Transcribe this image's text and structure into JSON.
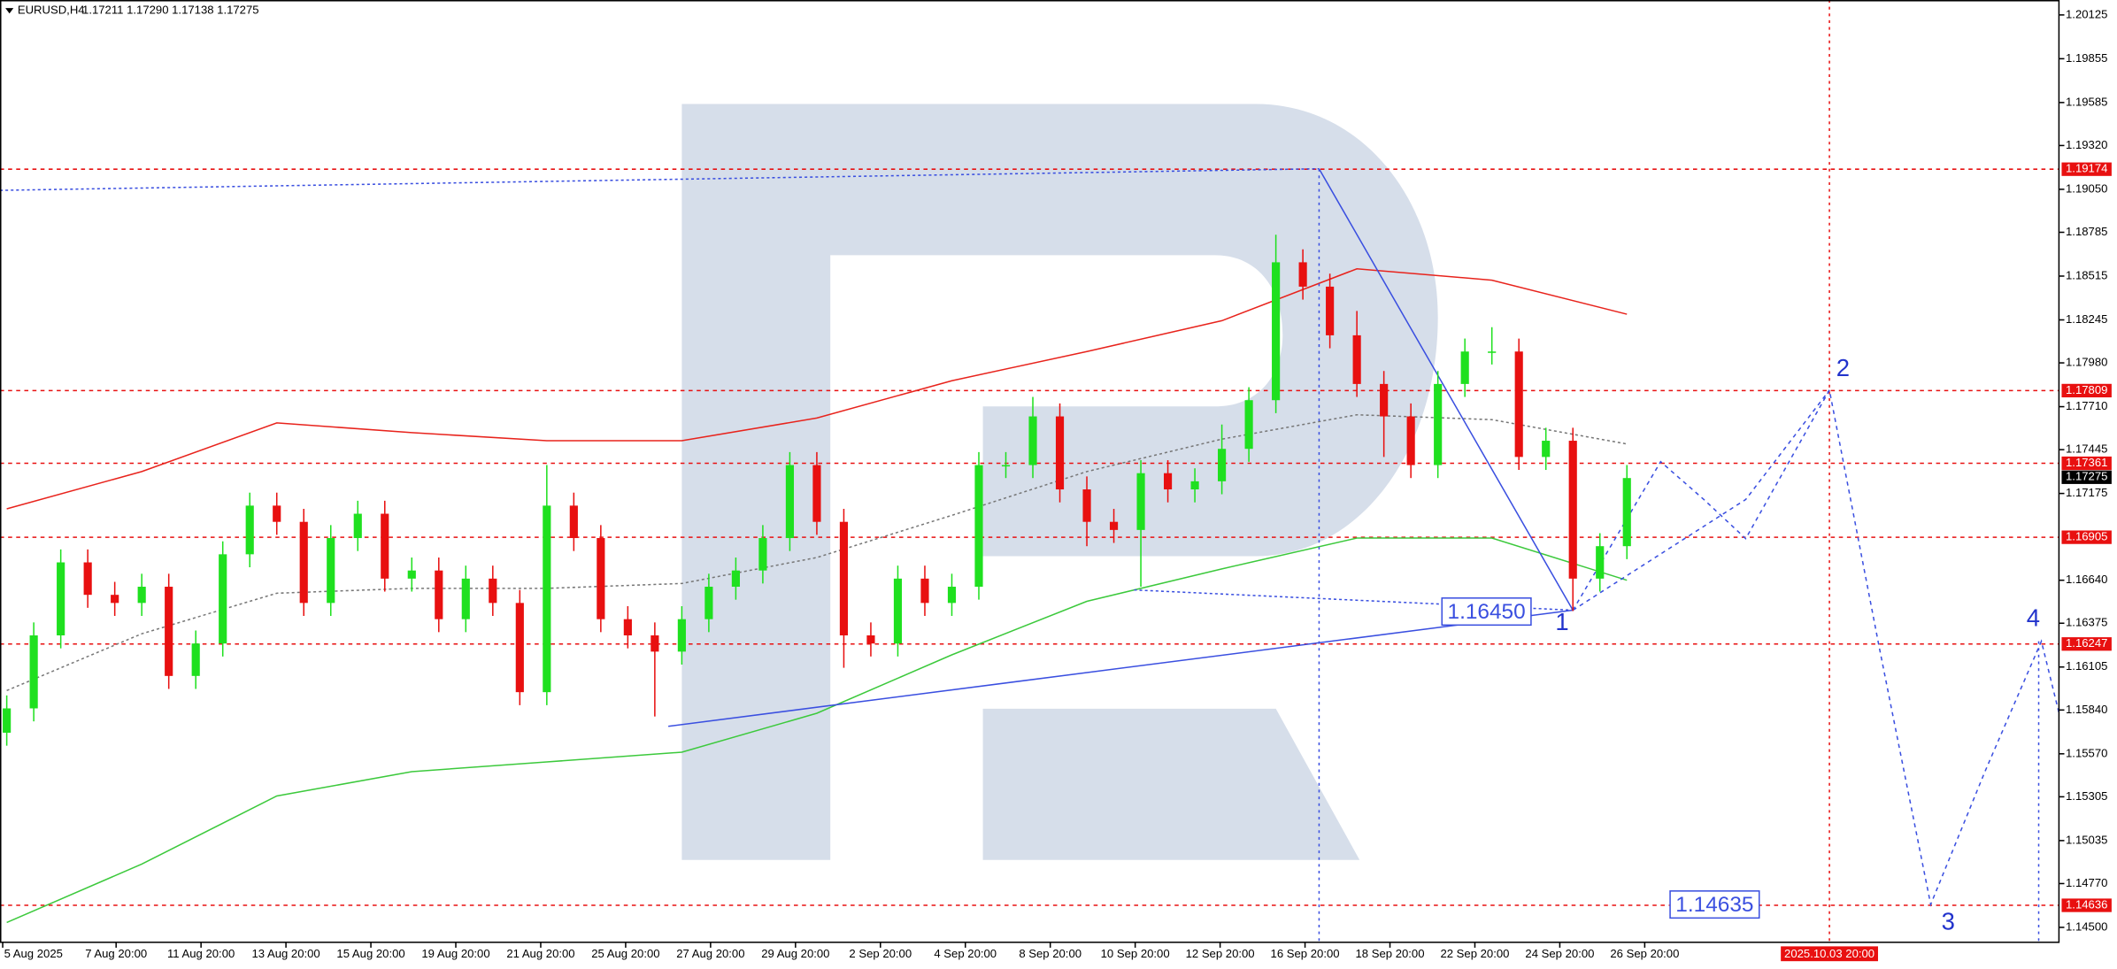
{
  "chart_data": {
    "type": "candlestick",
    "title": "EURUSD,H4",
    "header_values": "1.17211 1.17290 1.17138 1.17275",
    "ylim": [
      1.14408,
      1.20217
    ],
    "yticks": [
      {
        "value": 1.20125,
        "label": "1.20125"
      },
      {
        "value": 1.19855,
        "label": "1.19855"
      },
      {
        "value": 1.19585,
        "label": "1.19585"
      },
      {
        "value": 1.1932,
        "label": "1.19320"
      },
      {
        "value": 1.1905,
        "label": "1.19050"
      },
      {
        "value": 1.18785,
        "label": "1.18785"
      },
      {
        "value": 1.18515,
        "label": "1.18515"
      },
      {
        "value": 1.18245,
        "label": "1.18245"
      },
      {
        "value": 1.1798,
        "label": "1.17980"
      },
      {
        "value": 1.1771,
        "label": "1.17710"
      },
      {
        "value": 1.17445,
        "label": "1.17445"
      },
      {
        "value": 1.17175,
        "label": "1.17175"
      },
      {
        "value": 1.1664,
        "label": "1.16640"
      },
      {
        "value": 1.16375,
        "label": "1.16375"
      },
      {
        "value": 1.16105,
        "label": "1.16105"
      },
      {
        "value": 1.1584,
        "label": "1.15840"
      },
      {
        "value": 1.1557,
        "label": "1.15570"
      },
      {
        "value": 1.15305,
        "label": "1.15305"
      },
      {
        "value": 1.15035,
        "label": "1.15035"
      },
      {
        "value": 1.1477,
        "label": "1.14770"
      },
      {
        "value": 1.145,
        "label": "1.14500"
      }
    ],
    "x_labels": [
      "5 Aug 2025",
      "7 Aug 20:00",
      "11 Aug 20:00",
      "13 Aug 20:00",
      "15 Aug 20:00",
      "19 Aug 20:00",
      "21 Aug 20:00",
      "25 Aug 20:00",
      "27 Aug 20:00",
      "29 Aug 20:00",
      "2 Sep 20:00",
      "4 Sep 20:00",
      "8 Sep 20:00",
      "10 Sep 20:00",
      "12 Sep 20:00",
      "16 Sep 20:00",
      "18 Sep 20:00",
      "22 Sep 20:00",
      "24 Sep 20:00",
      "26 Sep 20:00"
    ],
    "forecast_time_label": "2025.10.03 20:00",
    "up_color": "#1fe01f",
    "down_color": "#e81010",
    "open": [
      1.157,
      1.1585,
      1.163,
      1.1675,
      1.1655,
      1.165,
      1.166,
      1.1605,
      1.1625,
      1.168,
      1.171,
      1.17,
      1.165,
      1.169,
      1.1705,
      1.1665,
      1.167,
      1.164,
      1.1665,
      1.165,
      1.1595,
      1.171,
      1.169,
      1.164,
      1.163,
      1.162,
      1.164,
      1.166,
      1.167,
      1.169,
      1.1735,
      1.17,
      1.163,
      1.1625,
      1.1665,
      1.165,
      1.166,
      1.1735,
      1.1735,
      1.1765,
      1.172,
      1.17,
      1.1695,
      1.173,
      1.172,
      1.1725,
      1.1745,
      1.1775,
      1.186,
      1.1845,
      1.1815,
      1.1785,
      1.1765,
      1.1735,
      1.1785,
      1.1805,
      1.1805,
      1.174,
      1.175,
      1.1665,
      1.1685
    ],
    "high": [
      1.1593,
      1.1638,
      1.1683,
      1.1683,
      1.1663,
      1.1668,
      1.1668,
      1.1633,
      1.1688,
      1.1718,
      1.1718,
      1.1708,
      1.1698,
      1.1713,
      1.1713,
      1.1678,
      1.1678,
      1.1673,
      1.1673,
      1.1658,
      1.1735,
      1.1718,
      1.1698,
      1.1648,
      1.1638,
      1.1648,
      1.1668,
      1.1678,
      1.1698,
      1.1743,
      1.1743,
      1.1708,
      1.1638,
      1.1673,
      1.1673,
      1.1668,
      1.1743,
      1.1743,
      1.1777,
      1.1773,
      1.1728,
      1.1708,
      1.1738,
      1.1738,
      1.1733,
      1.176,
      1.1783,
      1.1877,
      1.1868,
      1.1853,
      1.183,
      1.1793,
      1.1773,
      1.1793,
      1.1813,
      1.182,
      1.1813,
      1.1758,
      1.1758,
      1.1693,
      1.1735
    ],
    "low": [
      1.1562,
      1.1577,
      1.1622,
      1.1647,
      1.1642,
      1.1642,
      1.1597,
      1.1597,
      1.1617,
      1.1672,
      1.1692,
      1.1642,
      1.1642,
      1.1682,
      1.1657,
      1.1657,
      1.1632,
      1.1632,
      1.1642,
      1.1587,
      1.1587,
      1.1682,
      1.1632,
      1.1622,
      1.158,
      1.1612,
      1.1632,
      1.1652,
      1.1662,
      1.1682,
      1.1692,
      1.161,
      1.1617,
      1.1617,
      1.1642,
      1.1642,
      1.1652,
      1.1727,
      1.1727,
      1.1712,
      1.1685,
      1.1687,
      1.166,
      1.1712,
      1.1712,
      1.1717,
      1.1737,
      1.1767,
      1.1837,
      1.1807,
      1.1777,
      1.174,
      1.1727,
      1.1727,
      1.1777,
      1.1797,
      1.1732,
      1.1732,
      1.1645,
      1.1657,
      1.1677
    ],
    "close": [
      1.1585,
      1.163,
      1.1675,
      1.1655,
      1.165,
      1.166,
      1.1605,
      1.1625,
      1.168,
      1.171,
      1.17,
      1.165,
      1.169,
      1.1705,
      1.1665,
      1.167,
      1.164,
      1.1665,
      1.165,
      1.1595,
      1.171,
      1.169,
      1.164,
      1.163,
      1.162,
      1.164,
      1.166,
      1.167,
      1.169,
      1.1735,
      1.17,
      1.163,
      1.1625,
      1.1665,
      1.165,
      1.166,
      1.1735,
      1.1735,
      1.1765,
      1.172,
      1.17,
      1.1695,
      1.173,
      1.172,
      1.1725,
      1.1745,
      1.1775,
      1.186,
      1.1845,
      1.1815,
      1.1785,
      1.1765,
      1.1735,
      1.1785,
      1.1805,
      1.1805,
      1.174,
      1.175,
      1.1665,
      1.1685,
      1.1727
    ],
    "indicators": [
      {
        "color": "#e8231c",
        "style": "solid",
        "x": [
          0,
          5,
          10,
          15,
          20,
          25,
          30,
          35,
          40,
          45,
          50,
          55,
          60
        ],
        "values": [
          1.1708,
          1.1731,
          1.1761,
          1.1755,
          1.175,
          1.175,
          1.1764,
          1.1787,
          1.1805,
          1.1824,
          1.1856,
          1.1849,
          1.1828
        ]
      },
      {
        "color": "#777777",
        "style": "dotted",
        "x": [
          0,
          5,
          10,
          15,
          20,
          25,
          30,
          35,
          40,
          45,
          50,
          55,
          60
        ],
        "values": [
          1.1596,
          1.1631,
          1.1656,
          1.1659,
          1.1659,
          1.1662,
          1.1678,
          1.1704,
          1.1731,
          1.1751,
          1.1766,
          1.1763,
          1.1748
        ]
      },
      {
        "color": "#3cc93c",
        "style": "solid",
        "x": [
          0,
          5,
          10,
          15,
          20,
          25,
          30,
          35,
          40,
          45,
          50,
          55,
          60
        ],
        "values": [
          1.1453,
          1.1489,
          1.1531,
          1.1546,
          1.1552,
          1.1558,
          1.1582,
          1.1618,
          1.1651,
          1.1671,
          1.169,
          1.169,
          1.1664
        ]
      }
    ],
    "levels": [
      1.19174,
      1.17809,
      1.17361,
      1.16905,
      1.16247,
      1.14636
    ],
    "current_price": 1.17275,
    "price_boxes": [
      "1.16450",
      "1.14635"
    ],
    "wave_labels": [
      "1",
      "2",
      "3",
      "4"
    ]
  }
}
